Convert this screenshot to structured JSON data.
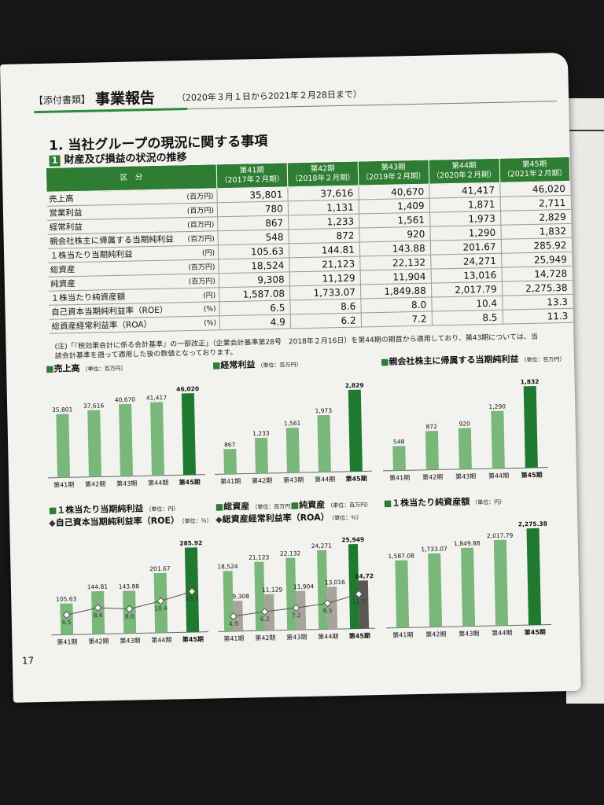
{
  "header": {
    "tag": "【添付書類】",
    "title": "事業報告",
    "period": "（2020年３月１日から2021年２月28日まで）"
  },
  "section_title": "1. 当社グループの現況に関する事項",
  "subsection": {
    "num": "1",
    "label": "財産及び損益の状況の推移"
  },
  "table": {
    "headers": [
      "区　分",
      "第41期\n（2017年２月期）",
      "第42期\n（2018年２月期）",
      "第43期\n（2019年２月期）",
      "第44期\n（2020年２月期）",
      "第45期\n（2021年２月期）"
    ],
    "rows": [
      {
        "label": "売上高",
        "unit": "(百万円)",
        "values": [
          "35,801",
          "37,616",
          "40,670",
          "41,417",
          "46,020"
        ]
      },
      {
        "label": "営業利益",
        "unit": "(百万円)",
        "values": [
          "780",
          "1,131",
          "1,409",
          "1,871",
          "2,711"
        ]
      },
      {
        "label": "経常利益",
        "unit": "(百万円)",
        "values": [
          "867",
          "1,233",
          "1,561",
          "1,973",
          "2,829"
        ]
      },
      {
        "label": "親会社株主に帰属する当期純利益",
        "unit": "(百万円)",
        "values": [
          "548",
          "872",
          "920",
          "1,290",
          "1,832"
        ]
      },
      {
        "label": "１株当たり当期純利益",
        "unit": "(円)",
        "values": [
          "105.63",
          "144.81",
          "143.88",
          "201.67",
          "285.92"
        ]
      },
      {
        "label": "総資産",
        "unit": "(百万円)",
        "values": [
          "18,524",
          "21,123",
          "22,132",
          "24,271",
          "25,949"
        ]
      },
      {
        "label": "純資産",
        "unit": "(百万円)",
        "values": [
          "9,308",
          "11,129",
          "11,904",
          "13,016",
          "14,728"
        ]
      },
      {
        "label": "１株当たり純資産額",
        "unit": "(円)",
        "values": [
          "1,587.08",
          "1,733.07",
          "1,849.88",
          "2,017.79",
          "2,275.38"
        ]
      },
      {
        "label": "自己資本当期純利益率（ROE）",
        "unit": "(%)",
        "values": [
          "6.5",
          "8.6",
          "8.0",
          "10.4",
          "13.3"
        ]
      },
      {
        "label": "総資産経常利益率（ROA）",
        "unit": "(%)",
        "values": [
          "4.9",
          "6.2",
          "7.2",
          "8.5",
          "11.3"
        ]
      }
    ]
  },
  "note": "(注)「『税効果会計に係る会計基準』の一部改正」（企業会計基準第28号　2018年２月16日）を第44期の期首から適用しており、第43期については、当該会計基準を遡って適用した後の数値となっております。",
  "page_number": "17",
  "chart_data": [
    {
      "type": "bar",
      "title": "売上高",
      "unit": "（単位：百万円）",
      "categories": [
        "第41期",
        "第42期",
        "第43期",
        "第44期",
        "第45期"
      ],
      "values": [
        35801,
        37616,
        40670,
        41417,
        46020
      ],
      "labels": [
        "35,801",
        "37,616",
        "40,670",
        "41,417",
        "46,020"
      ]
    },
    {
      "type": "bar",
      "title": "経常利益",
      "unit": "（単位：百万円）",
      "categories": [
        "第41期",
        "第42期",
        "第43期",
        "第44期",
        "第45期"
      ],
      "values": [
        867,
        1233,
        1561,
        1973,
        2829
      ],
      "labels": [
        "867",
        "1,233",
        "1,561",
        "1,973",
        "2,829"
      ]
    },
    {
      "type": "bar",
      "title": "親会社株主に帰属する当期純利益",
      "unit": "（単位：百万円）",
      "categories": [
        "第41期",
        "第42期",
        "第43期",
        "第44期",
        "第45期"
      ],
      "values": [
        548,
        872,
        920,
        1290,
        1832
      ],
      "labels": [
        "548",
        "872",
        "920",
        "1,290",
        "1,832"
      ]
    },
    {
      "type": "bar",
      "title": "１株当たり当期純利益",
      "unit": "（単位：円）",
      "title2": "自己資本当期純利益率（ROE）",
      "unit2": "（単位：％）",
      "categories": [
        "第41期",
        "第42期",
        "第43期",
        "第44期",
        "第45期"
      ],
      "values": [
        105.63,
        144.81,
        143.88,
        201.67,
        285.92
      ],
      "labels": [
        "105.63",
        "144.81",
        "143.88",
        "201.67",
        "285.92"
      ],
      "line_values": [
        6.5,
        8.6,
        8.0,
        10.4,
        13.3
      ],
      "line_labels": [
        "6.5",
        "8.6",
        "8.0",
        "10.4",
        "13.3"
      ]
    },
    {
      "type": "bar",
      "title": "総資産",
      "unit": "（単位：百万円）",
      "title_b": "純資産",
      "unit_b": "（単位：百万円）",
      "title2": "総資産経常利益率（ROA）",
      "unit2": "（単位：％）",
      "categories": [
        "第41期",
        "第42期",
        "第43期",
        "第44期",
        "第45期"
      ],
      "values": [
        18524,
        21123,
        22132,
        24271,
        25949
      ],
      "labels": [
        "18,524",
        "21,123",
        "22,132",
        "24,271",
        "25,949"
      ],
      "values_b": [
        9308,
        11129,
        11904,
        13016,
        14728
      ],
      "labels_b": [
        "9,308",
        "11,129",
        "11,904",
        "13,016",
        "14,728"
      ],
      "line_values": [
        4.9,
        6.2,
        7.2,
        8.5,
        11.3
      ],
      "line_labels": [
        "4.9",
        "6.2",
        "7.2",
        "8.5",
        "11.3"
      ]
    },
    {
      "type": "bar",
      "title": "１株当たり純資産額",
      "unit": "（単位：円）",
      "categories": [
        "第41期",
        "第42期",
        "第43期",
        "第44期",
        "第45期"
      ],
      "values": [
        1587.08,
        1733.07,
        1849.88,
        2017.79,
        2275.38
      ],
      "labels": [
        "1,587.08",
        "1,733.07",
        "1,849.88",
        "2,017.79",
        "2,275.38"
      ]
    }
  ],
  "colors": {
    "bar": "#7ab77a",
    "bar_last": "#1f7a30",
    "bar_b": "#a8a49c",
    "bar_b_last": "#5a5652",
    "line": "#555555",
    "accent": "#2e7d32"
  }
}
